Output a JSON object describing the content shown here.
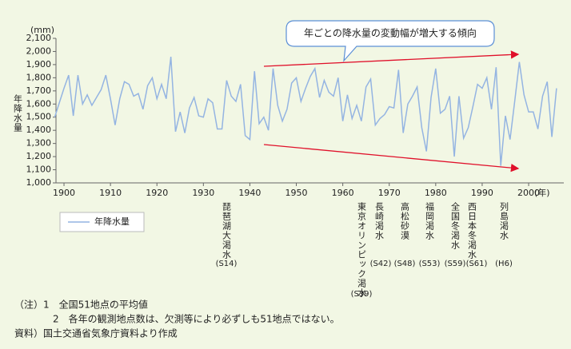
{
  "chart_data": {
    "type": "line",
    "unit_label": "(mm)",
    "ylabel": "年降水量",
    "xlabel": "(年)",
    "annotation": "年ごとの降水量の変動幅が増大する傾向",
    "xlim": [
      1898,
      2007
    ],
    "xticks": [
      1900,
      1910,
      1920,
      1930,
      1940,
      1950,
      1960,
      1970,
      1980,
      1990,
      2000
    ],
    "ylim": [
      1000,
      2100
    ],
    "yticks": [
      {
        "value": 1000,
        "label": "1,000"
      },
      {
        "value": 1100,
        "label": "1,100"
      },
      {
        "value": 1200,
        "label": "1,200"
      },
      {
        "value": 1300,
        "label": "1,300"
      },
      {
        "value": 1400,
        "label": "1,400"
      },
      {
        "value": 1500,
        "label": "1,500"
      },
      {
        "value": 1600,
        "label": "1,600"
      },
      {
        "value": 1700,
        "label": "1,700"
      },
      {
        "value": 1800,
        "label": "1,800"
      },
      {
        "value": 1900,
        "label": "1,900"
      },
      {
        "value": 2000,
        "label": "2,000"
      },
      {
        "value": 2100,
        "label": "2,100"
      }
    ],
    "x": [
      1898,
      1899,
      1900,
      1901,
      1902,
      1903,
      1904,
      1905,
      1906,
      1907,
      1908,
      1909,
      1910,
      1911,
      1912,
      1913,
      1914,
      1915,
      1916,
      1917,
      1918,
      1919,
      1920,
      1921,
      1922,
      1923,
      1924,
      1925,
      1926,
      1927,
      1928,
      1929,
      1930,
      1931,
      1932,
      1933,
      1934,
      1935,
      1936,
      1937,
      1938,
      1939,
      1940,
      1941,
      1942,
      1943,
      1944,
      1945,
      1946,
      1947,
      1948,
      1949,
      1950,
      1951,
      1952,
      1953,
      1954,
      1955,
      1956,
      1957,
      1958,
      1959,
      1960,
      1961,
      1962,
      1963,
      1964,
      1965,
      1966,
      1967,
      1968,
      1969,
      1970,
      1971,
      1972,
      1973,
      1974,
      1975,
      1976,
      1977,
      1978,
      1979,
      1980,
      1981,
      1982,
      1983,
      1984,
      1985,
      1986,
      1987,
      1988,
      1989,
      1990,
      1991,
      1992,
      1993,
      1994,
      1995,
      1996,
      1997,
      1998,
      1999,
      2000,
      2001,
      2002,
      2003,
      2004,
      2005,
      2006
    ],
    "series": [
      {
        "name": "年降水量",
        "color": "#94b4e2",
        "values": [
          1500,
          1610,
          1720,
          1820,
          1510,
          1820,
          1600,
          1670,
          1590,
          1650,
          1710,
          1820,
          1640,
          1440,
          1640,
          1770,
          1750,
          1660,
          1680,
          1560,
          1740,
          1800,
          1640,
          1750,
          1640,
          1960,
          1390,
          1540,
          1380,
          1570,
          1650,
          1510,
          1500,
          1640,
          1610,
          1410,
          1410,
          1780,
          1660,
          1620,
          1750,
          1360,
          1330,
          1850,
          1450,
          1500,
          1400,
          1870,
          1590,
          1470,
          1560,
          1760,
          1800,
          1620,
          1720,
          1810,
          1870,
          1650,
          1780,
          1690,
          1660,
          1800,
          1470,
          1670,
          1490,
          1590,
          1470,
          1730,
          1790,
          1440,
          1490,
          1520,
          1580,
          1570,
          1860,
          1380,
          1600,
          1660,
          1730,
          1420,
          1240,
          1650,
          1870,
          1530,
          1560,
          1660,
          1200,
          1660,
          1340,
          1420,
          1580,
          1750,
          1720,
          1800,
          1560,
          1880,
          1130,
          1510,
          1330,
          1620,
          1920,
          1670,
          1540,
          1540,
          1410,
          1660,
          1770,
          1350,
          1720
        ]
      }
    ],
    "events": [
      {
        "label": "琵琶湖大渇水",
        "era": "(S14)"
      },
      {
        "label": "東京オリンピック渇水",
        "era": "(S39)"
      },
      {
        "label": "長崎渇水",
        "era": "(S42)"
      },
      {
        "label": "高松砂漠",
        "era": "(S48)"
      },
      {
        "label": "福岡渇水",
        "era": "(S53)"
      },
      {
        "label": "全国冬渇水",
        "era": "(S59)"
      },
      {
        "label": "西日本冬渇水",
        "era": "(S61)"
      },
      {
        "label": "列島渇水",
        "era": "(H6)"
      }
    ],
    "notes": [
      "（注）1　全国51地点の平均値",
      "2　各年の観測地点数は、欠測等により必ずしも51地点ではない。",
      "資料）国土交通省気象庁資料より作成"
    ]
  }
}
